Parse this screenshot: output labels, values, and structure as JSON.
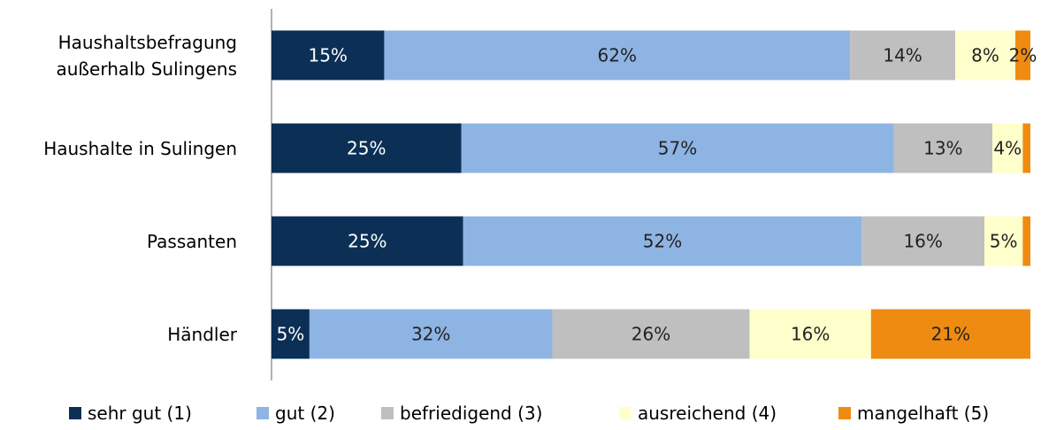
{
  "chart_data": {
    "type": "stacked-bar-horizontal-100",
    "categories": [
      "Haushaltsbefragung\naußerhalb Sulingens",
      "Haushalte in  Sulingen",
      "Passanten",
      "Händler"
    ],
    "series": [
      {
        "name": "sehr gut (1)",
        "color": "#0b2f55",
        "values": [
          15,
          25,
          25,
          5
        ],
        "value_labels": [
          "15%",
          "25%",
          "25%",
          "5%"
        ]
      },
      {
        "name": "gut (2)",
        "color": "#8eb4e3",
        "values": [
          62,
          57,
          52,
          32
        ],
        "value_labels": [
          "62%",
          "57%",
          "52%",
          "32%"
        ]
      },
      {
        "name": "befriedigend (3)",
        "color": "#bfbfbf",
        "values": [
          14,
          13,
          16,
          26
        ],
        "value_labels": [
          "14%",
          "13%",
          "16%",
          "26%"
        ]
      },
      {
        "name": "ausreichend (4)",
        "color": "#ffffcc",
        "values": [
          8,
          4,
          5,
          16
        ],
        "value_labels": [
          "8%",
          "4%",
          "5%",
          "16%"
        ]
      },
      {
        "name": "mangelhaft (5)",
        "color": "#ef8b10",
        "values": [
          2,
          1,
          1,
          21
        ],
        "value_labels": [
          "2%",
          null,
          null,
          "21%"
        ]
      }
    ],
    "legend": "bottom"
  }
}
